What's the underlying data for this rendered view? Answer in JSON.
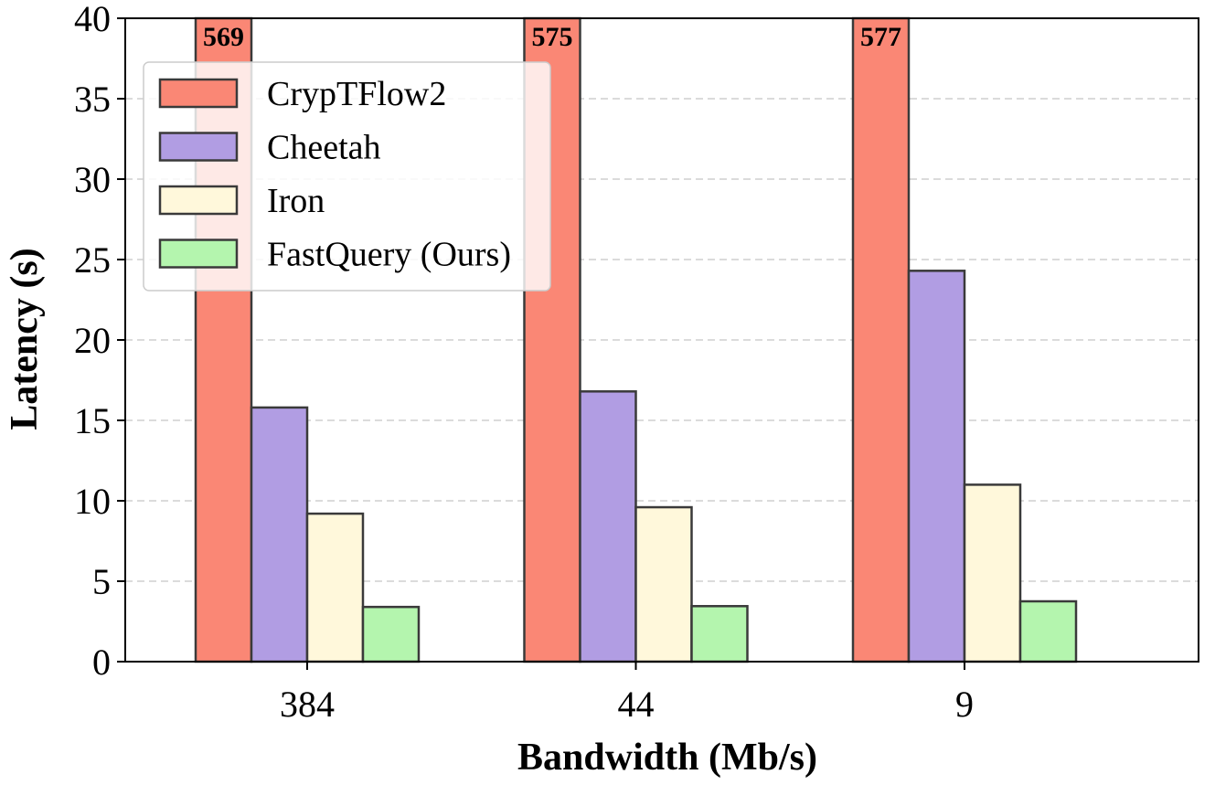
{
  "chart_data": {
    "type": "bar",
    "title": "",
    "xlabel": "Bandwidth (Mb/s)",
    "ylabel": "Latency (s)",
    "ylim": [
      0,
      40
    ],
    "yticks": [
      0,
      5,
      10,
      15,
      20,
      25,
      30,
      35,
      40
    ],
    "categories": [
      "384",
      "44",
      "9"
    ],
    "grid": "y-dashed",
    "legend_position": "top-left",
    "series": [
      {
        "name": "CrypTFlow2",
        "color": "#fa8775",
        "values": [
          569,
          575,
          577
        ],
        "labels": [
          "569",
          "575",
          "577"
        ]
      },
      {
        "name": "Cheetah",
        "color": "#b19de3",
        "values": [
          15.8,
          16.8,
          24.3
        ]
      },
      {
        "name": "Iron",
        "color": "#fff8db",
        "values": [
          9.2,
          9.6,
          11.0
        ]
      },
      {
        "name": "FastQuery (Ours)",
        "color": "#b4f5ae",
        "values": [
          3.4,
          3.45,
          3.75
        ]
      }
    ]
  }
}
